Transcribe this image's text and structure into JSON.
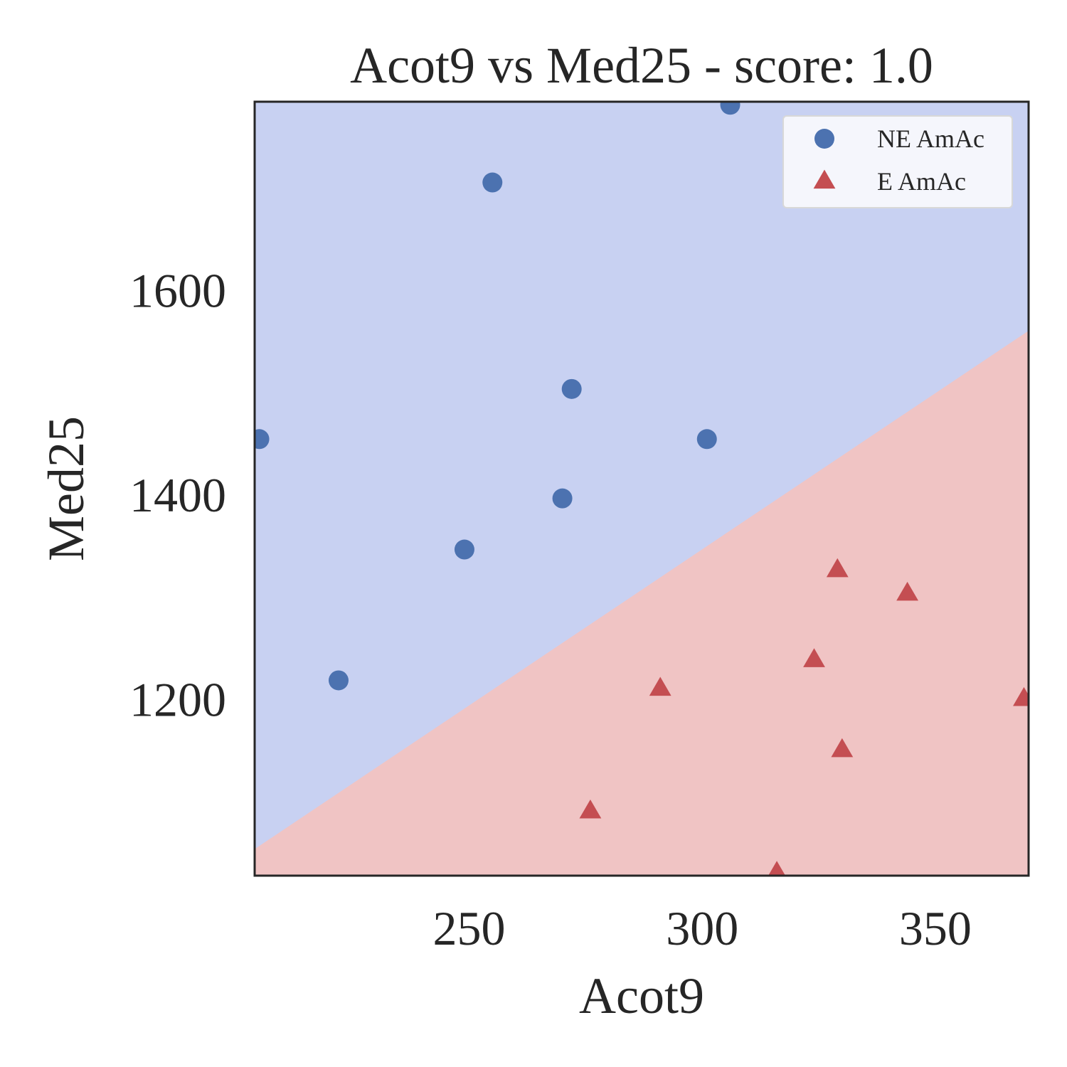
{
  "chart_data": {
    "type": "scatter",
    "title": "Acot9 vs Med25 - score: 1.0",
    "xlabel": "Acot9",
    "ylabel": "Med25",
    "xlim": [
      204,
      370
    ],
    "ylim": [
      1027,
      1784
    ],
    "x_ticks": [
      250,
      300,
      350
    ],
    "y_ticks": [
      1200,
      1400,
      1600
    ],
    "grid": false,
    "legend_position": "top-right",
    "decision_boundary": {
      "points": [
        [
          204,
          1053
        ],
        [
          370,
          1560
        ]
      ],
      "above_region_color": "#c8d1f2",
      "below_region_color": "#f0c4c4"
    },
    "series": [
      {
        "name": "NE AmAc",
        "marker": "circle",
        "color": "#4c72b0",
        "points": [
          [
            205,
            1454
          ],
          [
            222,
            1218
          ],
          [
            249,
            1346
          ],
          [
            255,
            1705
          ],
          [
            270,
            1396
          ],
          [
            272,
            1503
          ],
          [
            301,
            1454
          ],
          [
            306,
            1781
          ]
        ]
      },
      {
        "name": "E AmAc",
        "marker": "triangle",
        "color": "#c44e52",
        "points": [
          [
            276,
            1090
          ],
          [
            291,
            1210
          ],
          [
            316,
            1030
          ],
          [
            324,
            1238
          ],
          [
            329,
            1326
          ],
          [
            330,
            1150
          ],
          [
            344,
            1303
          ],
          [
            369,
            1200
          ]
        ]
      }
    ]
  }
}
